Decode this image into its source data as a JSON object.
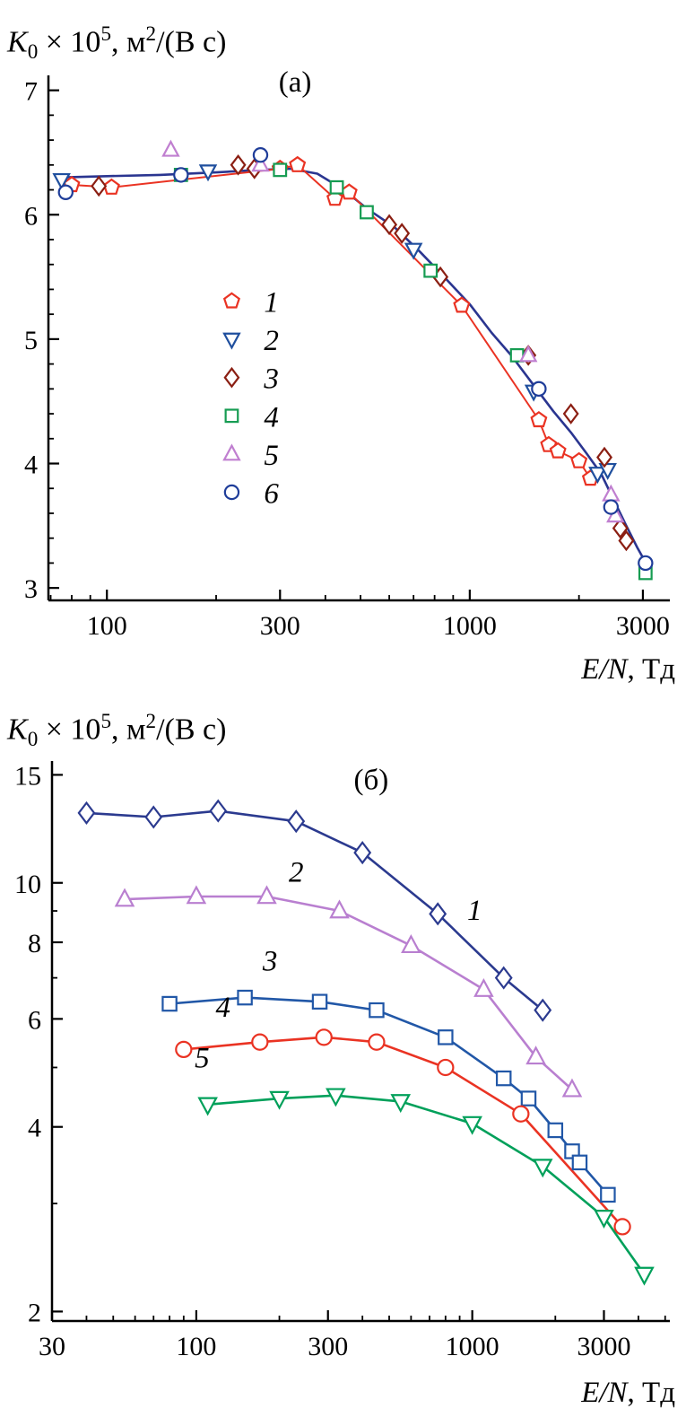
{
  "chart_data": [
    {
      "type": "scatter",
      "panel": "a",
      "title": "K0 × 10^5, м^2/(В с)",
      "title_parts": {
        "var": "K",
        "sub": "0",
        "times": " × 10",
        "exp": "5",
        "unit1": ", м",
        "unit_exp": "2",
        "unit2": "/(В с)"
      },
      "xlabel": "E/N, Тд",
      "xlabel_parts": {
        "italic": "E/N",
        "rest": ", Тд"
      },
      "xscale": "log",
      "yscale": "linear",
      "xlim": [
        69,
        3560
      ],
      "ylim": [
        2.9,
        7.12
      ],
      "xticks": [
        100,
        300,
        1000,
        3000
      ],
      "yticks": [
        3,
        4,
        5,
        6,
        7
      ],
      "yminor_step": 0.2,
      "marker_r": 8,
      "margins": {
        "l": 54,
        "r": 18,
        "t": 20,
        "b": 55
      },
      "legend": {
        "fx": 0.295,
        "fy": 0.43,
        "dfy": 0.0728
      },
      "annotations": [
        {
          "text": "(а)",
          "x": 330,
          "y": 6.99,
          "italic": false
        }
      ],
      "series": [
        {
          "label": null,
          "marker": null,
          "color": "#2a3590",
          "line": true,
          "lw": 2.6,
          "x": [
            75,
            100,
            140,
            200,
            260,
            320,
            380,
            450,
            520,
            620,
            730,
            850,
            1000,
            1150,
            1300,
            1500,
            1700,
            1900,
            2100,
            2300,
            2500,
            2700,
            2900,
            3100
          ],
          "y": [
            6.3,
            6.31,
            6.32,
            6.34,
            6.36,
            6.37,
            6.33,
            6.2,
            6.05,
            5.9,
            5.7,
            5.5,
            5.28,
            5.05,
            4.87,
            4.63,
            4.42,
            4.25,
            4.08,
            3.92,
            3.7,
            3.5,
            3.32,
            3.17
          ]
        },
        {
          "label": "1",
          "marker": "pentagon",
          "color": "#ea3323",
          "line": true,
          "lw": 2.0,
          "x": [
            80,
            103,
            300,
            335,
            425,
            465,
            950,
            1550,
            1650,
            1750,
            2000,
            2150
          ],
          "y": [
            6.24,
            6.22,
            6.37,
            6.4,
            6.13,
            6.18,
            5.27,
            4.35,
            4.15,
            4.1,
            4.02,
            3.88
          ]
        },
        {
          "label": "2",
          "marker": "triangle-down",
          "color": "#1f4f9e",
          "line": false,
          "x": [
            75,
            190,
            700,
            1500,
            2250,
            2400
          ],
          "y": [
            6.28,
            6.35,
            5.72,
            4.58,
            3.92,
            3.95
          ]
        },
        {
          "label": "3",
          "marker": "diamond",
          "color": "#8b1f13",
          "line": false,
          "x": [
            95,
            230,
            255,
            600,
            650,
            830,
            1450,
            1900,
            2350,
            2600,
            2700
          ],
          "y": [
            6.23,
            6.4,
            6.37,
            5.92,
            5.85,
            5.5,
            4.87,
            4.4,
            4.05,
            3.48,
            3.38
          ]
        },
        {
          "label": "4",
          "marker": "square",
          "color": "#169c52",
          "line": false,
          "x": [
            160,
            300,
            430,
            520,
            780,
            1350,
            3050
          ],
          "y": [
            6.32,
            6.36,
            6.22,
            6.02,
            5.55,
            4.87,
            3.12
          ]
        },
        {
          "label": "5",
          "marker": "triangle-up",
          "color": "#c07fd0",
          "line": false,
          "x": [
            150,
            265,
            1450,
            2450,
            2520
          ],
          "y": [
            6.52,
            6.4,
            4.87,
            3.75,
            3.58
          ]
        },
        {
          "label": "6",
          "marker": "circle",
          "color": "#1f3d99",
          "line": false,
          "x": [
            77,
            160,
            265,
            1550,
            2450,
            3050
          ],
          "y": [
            6.18,
            6.32,
            6.48,
            4.6,
            3.65,
            3.2
          ]
        }
      ]
    },
    {
      "type": "scatter",
      "panel": "b",
      "title": "K0 × 10^5, м^2/(В с)",
      "title_parts": {
        "var": "K",
        "sub": "0",
        "times": " × 10",
        "exp": "5",
        "unit1": ", м",
        "unit_exp": "2",
        "unit2": "/(В с)"
      },
      "xlabel": "E/N, Тд",
      "xlabel_parts": {
        "italic": "E/N",
        "rest": ", Тд"
      },
      "xscale": "log",
      "yscale": "log",
      "xlim": [
        30,
        5200
      ],
      "ylim": [
        1.93,
        15.8
      ],
      "xticks": [
        30,
        100,
        300,
        1000,
        3000
      ],
      "yticks": [
        2,
        4,
        6,
        8,
        10,
        15
      ],
      "marker_r": 9,
      "margins": {
        "l": 58,
        "r": 18,
        "t": 18,
        "b": 58
      },
      "legend": null,
      "annotations": [
        {
          "text": "(б)",
          "x": 430,
          "y": 14.2,
          "italic": false
        },
        {
          "text": "1",
          "x": 1020,
          "y": 8.7,
          "italic": true
        },
        {
          "text": "2",
          "x": 230,
          "y": 10.05,
          "italic": true
        },
        {
          "text": "3",
          "x": 185,
          "y": 7.2,
          "italic": true
        },
        {
          "text": "4",
          "x": 125,
          "y": 6.05,
          "italic": true
        },
        {
          "text": "5",
          "x": 105,
          "y": 5.0,
          "italic": true
        }
      ],
      "series": [
        {
          "label": "1",
          "marker": "diamond",
          "color": "#2b3a8f",
          "line": true,
          "lw": 2.6,
          "x": [
            40,
            70,
            120,
            230,
            400,
            750,
            1300,
            1800
          ],
          "y": [
            13.0,
            12.8,
            13.1,
            12.6,
            11.2,
            8.9,
            7.0,
            6.2
          ]
        },
        {
          "label": "2",
          "marker": "triangle-up",
          "color": "#b97fd0",
          "line": true,
          "lw": 2.6,
          "x": [
            55,
            100,
            180,
            330,
            600,
            1100,
            1700,
            2300
          ],
          "y": [
            9.4,
            9.5,
            9.5,
            9.0,
            7.9,
            6.7,
            5.2,
            4.6
          ]
        },
        {
          "label": "3",
          "marker": "square",
          "color": "#2157a7",
          "line": true,
          "lw": 2.6,
          "x": [
            80,
            150,
            280,
            450,
            800,
            1300,
            1600,
            2000,
            2300,
            2450,
            3100
          ],
          "y": [
            6.35,
            6.5,
            6.4,
            6.2,
            5.6,
            4.8,
            4.45,
            3.95,
            3.65,
            3.5,
            3.1
          ]
        },
        {
          "label": "4",
          "marker": "circle",
          "color": "#ea3323",
          "line": true,
          "lw": 2.6,
          "x": [
            90,
            170,
            290,
            450,
            800,
            1500,
            3500
          ],
          "y": [
            5.35,
            5.5,
            5.6,
            5.5,
            5.0,
            4.2,
            2.75
          ]
        },
        {
          "label": "5",
          "marker": "triangle-down",
          "color": "#00a05a",
          "line": true,
          "lw": 2.6,
          "x": [
            110,
            200,
            320,
            550,
            1000,
            1800,
            3000,
            4200
          ],
          "y": [
            4.35,
            4.45,
            4.5,
            4.4,
            4.05,
            3.45,
            2.85,
            2.3
          ]
        }
      ]
    }
  ]
}
